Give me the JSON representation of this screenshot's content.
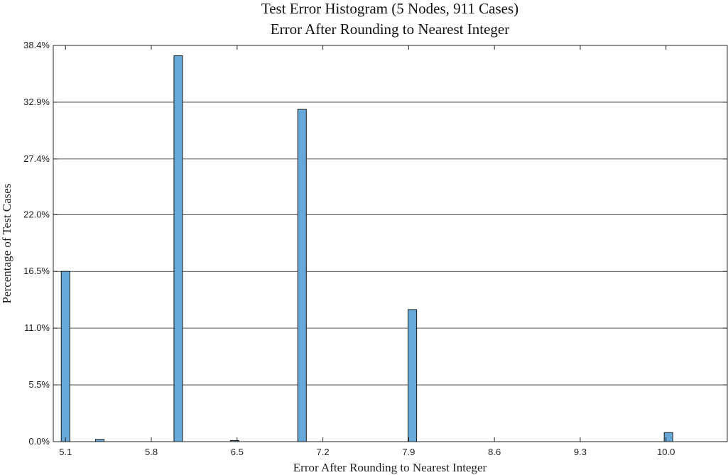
{
  "chart_data": {
    "type": "bar",
    "title": "Test Error Histogram (5 Nodes, 911 Cases)",
    "subtitle": "Error After Rounding to Nearest Integer",
    "xlabel": "Error After Rounding to Nearest Integer",
    "ylabel": "Percentage of Test Cases",
    "xlim": [
      5.0,
      10.5
    ],
    "ylim": [
      0,
      38.4
    ],
    "x_ticks": [
      5.1,
      5.8,
      6.5,
      7.2,
      7.9,
      8.6,
      9.3,
      10.0
    ],
    "x_tick_labels": [
      "5.1",
      "5.8",
      "6.5",
      "7.2",
      "7.9",
      "8.6",
      "9.3",
      "10.0"
    ],
    "y_ticks": [
      0,
      5.5,
      11.0,
      16.5,
      22.0,
      27.4,
      32.9,
      38.4
    ],
    "y_tick_labels": [
      "0.0%",
      "5.5%",
      "11.0%",
      "16.5%",
      "22.0%",
      "27.4%",
      "32.9%",
      "38.4%"
    ],
    "grid": true,
    "bar_width": 0.07,
    "bars": [
      {
        "x": 5.1,
        "value": 16.5
      },
      {
        "x": 5.38,
        "value": 0.22
      },
      {
        "x": 6.02,
        "value": 37.4
      },
      {
        "x": 6.48,
        "value": 0.11
      },
      {
        "x": 7.03,
        "value": 32.2
      },
      {
        "x": 7.93,
        "value": 12.8
      },
      {
        "x": 10.02,
        "value": 0.88
      }
    ],
    "colors": {
      "bar_fill": "#66a9d9",
      "bar_stroke": "#1a1a1a",
      "grid": "#262626",
      "axis": "#262626"
    }
  }
}
